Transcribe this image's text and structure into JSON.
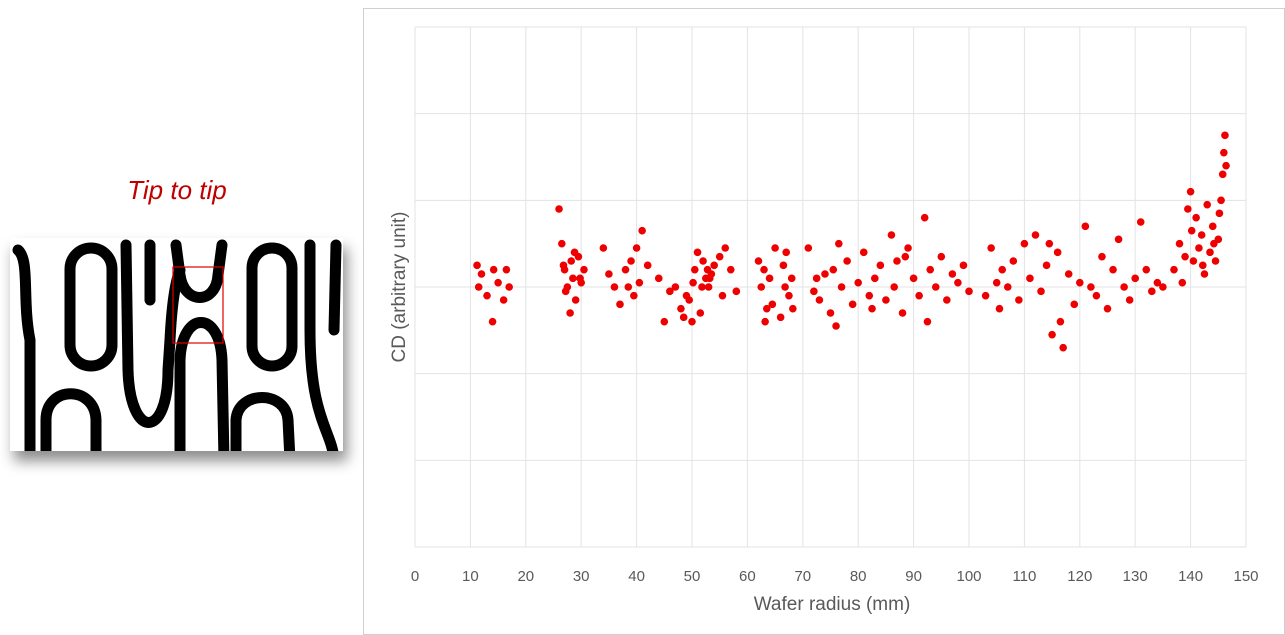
{
  "image_caption": "Tip to tip",
  "chart_data": {
    "type": "scatter",
    "x_label": "Wafer radius (mm)",
    "y_label": "CD (arbitrary unit)",
    "xlim": [
      0,
      150
    ],
    "xticks": [
      0,
      10,
      20,
      30,
      40,
      50,
      60,
      70,
      80,
      90,
      100,
      110,
      120,
      130,
      140,
      150
    ],
    "ylim": [
      0,
      6
    ],
    "ygrid": [
      0,
      1,
      2,
      3,
      4,
      5,
      6
    ],
    "grid": true,
    "series": [
      {
        "color": "#ee0000",
        "x": [
          11.2,
          11.5,
          12,
          13,
          14,
          14.2,
          15,
          16,
          16.5,
          17,
          26,
          26.5,
          27,
          27.5,
          28,
          28.2,
          28.5,
          29,
          29.5,
          30,
          30.5,
          27.2,
          28.8,
          29.8,
          26.8,
          34,
          35,
          37,
          38,
          38.5,
          39,
          40,
          40.5,
          41,
          42,
          39.5,
          36,
          44,
          45,
          46,
          47,
          48,
          49,
          50,
          50.5,
          51,
          51.5,
          52,
          52.5,
          53,
          53.5,
          54,
          55,
          55.5,
          56,
          57,
          58,
          49.5,
          50.2,
          51.8,
          52.8,
          53.2,
          48.5,
          62,
          62.5,
          63,
          63.5,
          64,
          64.5,
          65,
          66,
          66.5,
          67,
          67.5,
          68,
          68.2,
          66.8,
          63.2,
          71,
          72,
          72.5,
          73,
          74,
          75,
          75.5,
          76,
          77,
          78,
          79,
          80,
          81,
          82,
          83,
          84,
          85,
          86,
          86.5,
          87,
          88,
          89,
          90,
          91,
          92,
          93,
          94,
          95,
          96,
          97,
          98,
          99,
          100,
          76.5,
          82.5,
          88.5,
          92.5,
          103,
          104,
          105,
          105.5,
          106,
          107,
          108,
          109,
          110,
          111,
          112,
          113,
          114,
          115,
          116,
          117,
          118,
          119,
          120,
          121,
          122,
          123,
          124,
          125,
          126,
          127,
          128,
          129,
          130,
          131,
          132,
          133,
          134,
          135,
          114.5,
          116.5,
          137,
          138,
          138.5,
          139,
          139.5,
          140,
          140.5,
          141,
          141.5,
          142,
          142.5,
          143,
          143.5,
          144,
          144.5,
          145,
          145.2,
          145.5,
          145.8,
          146,
          146.2,
          146.4,
          140.2,
          142.2,
          144.2
        ],
        "values": [
          3.25,
          3.0,
          3.15,
          2.9,
          2.6,
          3.2,
          3.05,
          2.85,
          3.2,
          3.0,
          3.9,
          3.5,
          3.2,
          3.0,
          2.7,
          3.3,
          3.1,
          2.85,
          3.35,
          3.05,
          3.2,
          2.95,
          3.4,
          3.1,
          3.25,
          3.45,
          3.15,
          2.8,
          3.2,
          3.0,
          3.3,
          3.45,
          3.05,
          3.65,
          3.25,
          2.9,
          3.0,
          3.1,
          2.6,
          2.95,
          3.0,
          2.75,
          2.9,
          2.6,
          3.2,
          3.4,
          2.7,
          3.3,
          3.1,
          3.0,
          3.15,
          3.25,
          3.35,
          2.9,
          3.45,
          3.2,
          2.95,
          2.85,
          3.05,
          3.0,
          3.2,
          3.1,
          2.65,
          3.3,
          3.0,
          3.2,
          2.75,
          3.1,
          2.8,
          3.45,
          2.65,
          3.25,
          3.4,
          2.9,
          3.1,
          2.75,
          3.0,
          2.6,
          3.45,
          2.95,
          3.1,
          2.85,
          3.15,
          2.7,
          3.2,
          2.55,
          3.0,
          3.3,
          2.8,
          3.05,
          3.4,
          2.9,
          3.1,
          3.25,
          2.85,
          3.6,
          3.0,
          3.3,
          2.7,
          3.45,
          3.1,
          2.9,
          3.8,
          3.2,
          3.0,
          3.35,
          2.85,
          3.15,
          3.05,
          3.25,
          2.95,
          3.5,
          2.75,
          3.35,
          2.6,
          2.9,
          3.45,
          3.05,
          2.75,
          3.2,
          3.0,
          3.3,
          2.85,
          3.5,
          3.1,
          3.6,
          2.95,
          3.25,
          2.45,
          3.4,
          2.3,
          3.15,
          2.8,
          3.05,
          3.7,
          3.0,
          2.9,
          3.35,
          2.75,
          3.2,
          3.55,
          3.0,
          2.85,
          3.1,
          3.75,
          3.2,
          2.95,
          3.05,
          3.0,
          3.5,
          2.6,
          3.2,
          3.5,
          3.05,
          3.35,
          3.9,
          4.1,
          3.3,
          3.8,
          3.45,
          3.6,
          3.15,
          3.95,
          3.4,
          3.7,
          3.3,
          3.55,
          3.85,
          4.0,
          4.3,
          4.55,
          4.75,
          4.4,
          3.65,
          3.25,
          3.5
        ]
      }
    ]
  }
}
